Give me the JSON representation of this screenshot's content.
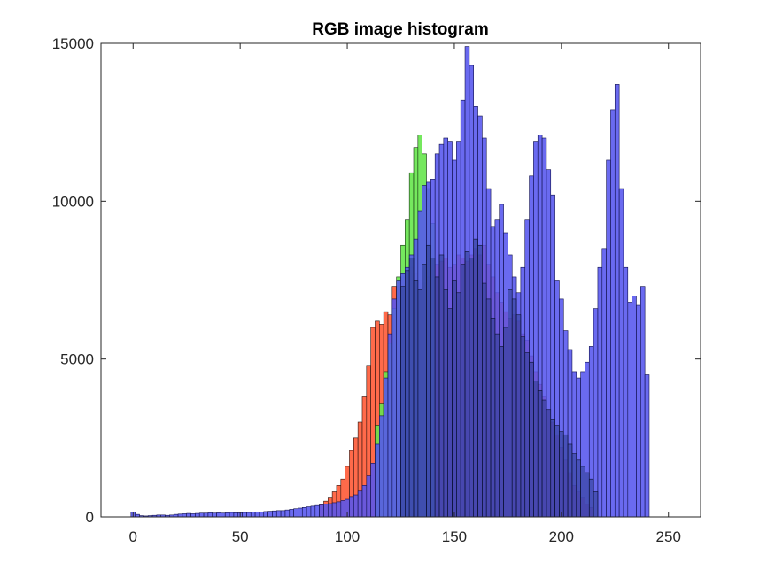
{
  "chart_data": {
    "type": "bar",
    "title": "RGB image histogram",
    "xlabel": "",
    "ylabel": "",
    "xlim": [
      -15,
      265
    ],
    "ylim": [
      0,
      15000
    ],
    "x_ticks": [
      0,
      50,
      100,
      150,
      200,
      250
    ],
    "x_tick_labels": [
      "0",
      "50",
      "100",
      "150",
      "200",
      "250"
    ],
    "y_ticks": [
      0,
      5000,
      10000,
      15000
    ],
    "y_tick_labels": [
      "0",
      "5000",
      "10000",
      "15000"
    ],
    "grid": false,
    "legend": "none",
    "bin_width": 2,
    "series": [
      {
        "color": "#ff5a36",
        "x": [
          88,
          90,
          92,
          94,
          96,
          98,
          100,
          102,
          104,
          106,
          108,
          110,
          112,
          114,
          116,
          118,
          120,
          122,
          124,
          126,
          128,
          130,
          132,
          134,
          136,
          138,
          140,
          142,
          144,
          146,
          148,
          150,
          152,
          154,
          156,
          158,
          160,
          162,
          164,
          166,
          168,
          170,
          172,
          174,
          176,
          178,
          180,
          182,
          184,
          186,
          188,
          190,
          192,
          194,
          196,
          198,
          200,
          202,
          204,
          206,
          208,
          210,
          212,
          214
        ],
        "values": [
          400,
          500,
          600,
          800,
          1000,
          1200,
          1600,
          2100,
          2500,
          3000,
          3800,
          4800,
          6000,
          6200,
          6100,
          6500,
          6400,
          7300,
          7300,
          7600,
          7800,
          7900,
          7700,
          7500,
          7400,
          7600,
          7800,
          8000,
          8100,
          8200,
          7900,
          8000,
          8300,
          8200,
          8100,
          8300,
          8500,
          8300,
          8600,
          8000,
          7600,
          7100,
          6800,
          6500,
          6300,
          6400,
          6200,
          5800,
          5600,
          5100,
          4600,
          4200,
          3800,
          3400,
          3000,
          2600,
          2200,
          1800,
          1400,
          1000,
          800,
          600,
          400,
          300
        ]
      },
      {
        "color": "#66e64d",
        "x": [
          114,
          116,
          118,
          120,
          122,
          124,
          126,
          128,
          130,
          132,
          134,
          136,
          138,
          140
        ],
        "values": [
          2900,
          3600,
          4600,
          5500,
          6600,
          7600,
          8600,
          9400,
          10900,
          11700,
          12100,
          11500,
          10400,
          9300
        ]
      },
      {
        "color": "#5555ee",
        "x": [
          0,
          2,
          4,
          6,
          8,
          10,
          12,
          14,
          16,
          18,
          20,
          22,
          24,
          26,
          28,
          30,
          32,
          34,
          36,
          38,
          40,
          42,
          44,
          46,
          48,
          50,
          52,
          54,
          56,
          58,
          60,
          62,
          64,
          66,
          68,
          70,
          72,
          74,
          76,
          78,
          80,
          82,
          84,
          86,
          88,
          90,
          92,
          94,
          96,
          98,
          100,
          102,
          104,
          106,
          108,
          110,
          112,
          114,
          116,
          118,
          120,
          122,
          124,
          126,
          128,
          130,
          132,
          134,
          136,
          138,
          140,
          142,
          144,
          146,
          148,
          150,
          152,
          154,
          156,
          158,
          160,
          162,
          164,
          166,
          168,
          170,
          172,
          174,
          176,
          178,
          180,
          182,
          184,
          186,
          188,
          190,
          192,
          194,
          196,
          198,
          200,
          202,
          204,
          206,
          208,
          210,
          212,
          214,
          216,
          218,
          220,
          222,
          224,
          226,
          228,
          230,
          232,
          234,
          236,
          238,
          240,
          242,
          244,
          246,
          248
        ],
        "values": [
          150,
          80,
          40,
          30,
          40,
          50,
          60,
          60,
          50,
          60,
          80,
          90,
          100,
          110,
          100,
          110,
          120,
          120,
          130,
          120,
          130,
          120,
          130,
          140,
          130,
          130,
          140,
          140,
          150,
          160,
          160,
          170,
          180,
          190,
          200,
          200,
          220,
          240,
          260,
          280,
          300,
          320,
          340,
          360,
          380,
          400,
          420,
          450,
          480,
          520,
          560,
          620,
          700,
          820,
          1000,
          1300,
          1700,
          2300,
          3200,
          4400,
          5800,
          6900,
          7500,
          7700,
          7900,
          8300,
          8800,
          9700,
          10500,
          10600,
          10700,
          11500,
          11800,
          12000,
          11900,
          11300,
          11900,
          13200,
          14900,
          14300,
          13000,
          12700,
          12000,
          10400,
          9200,
          9400,
          9900,
          9000,
          8300,
          7600,
          7100,
          7900,
          9400,
          10800,
          11900,
          12100,
          12000,
          11000,
          10200,
          7500,
          6900,
          5900,
          5300,
          4600,
          4400,
          4600,
          4900,
          5400,
          6600,
          7900,
          8500,
          11300,
          12900,
          13700,
          10400,
          7900,
          6800,
          7000,
          6700,
          7300,
          4500,
          0,
          0,
          0,
          0
        ],
        "overlay_x": [
          126,
          128,
          130,
          132,
          134,
          136,
          138,
          140,
          142,
          144,
          146,
          148,
          150,
          152,
          154,
          156,
          158,
          160,
          162,
          164,
          166,
          168,
          170,
          172,
          174,
          176,
          178,
          180,
          182,
          184,
          186,
          188,
          190,
          192,
          194,
          196,
          198,
          200,
          202,
          204,
          206,
          208,
          210,
          212,
          214,
          216
        ],
        "overlay_values": [
          7300,
          7800,
          8200,
          7500,
          7200,
          8000,
          8600,
          8200,
          7600,
          8300,
          7200,
          6600,
          7500,
          7100,
          8000,
          8400,
          8200,
          8800,
          8600,
          7400,
          6900,
          6300,
          5800,
          5400,
          6000,
          7200,
          6900,
          6400,
          5700,
          5200,
          4900,
          4300,
          4000,
          3700,
          3400,
          3100,
          2900,
          2700,
          2600,
          2300,
          2000,
          1800,
          1600,
          1400,
          1200,
          800
        ]
      }
    ]
  }
}
